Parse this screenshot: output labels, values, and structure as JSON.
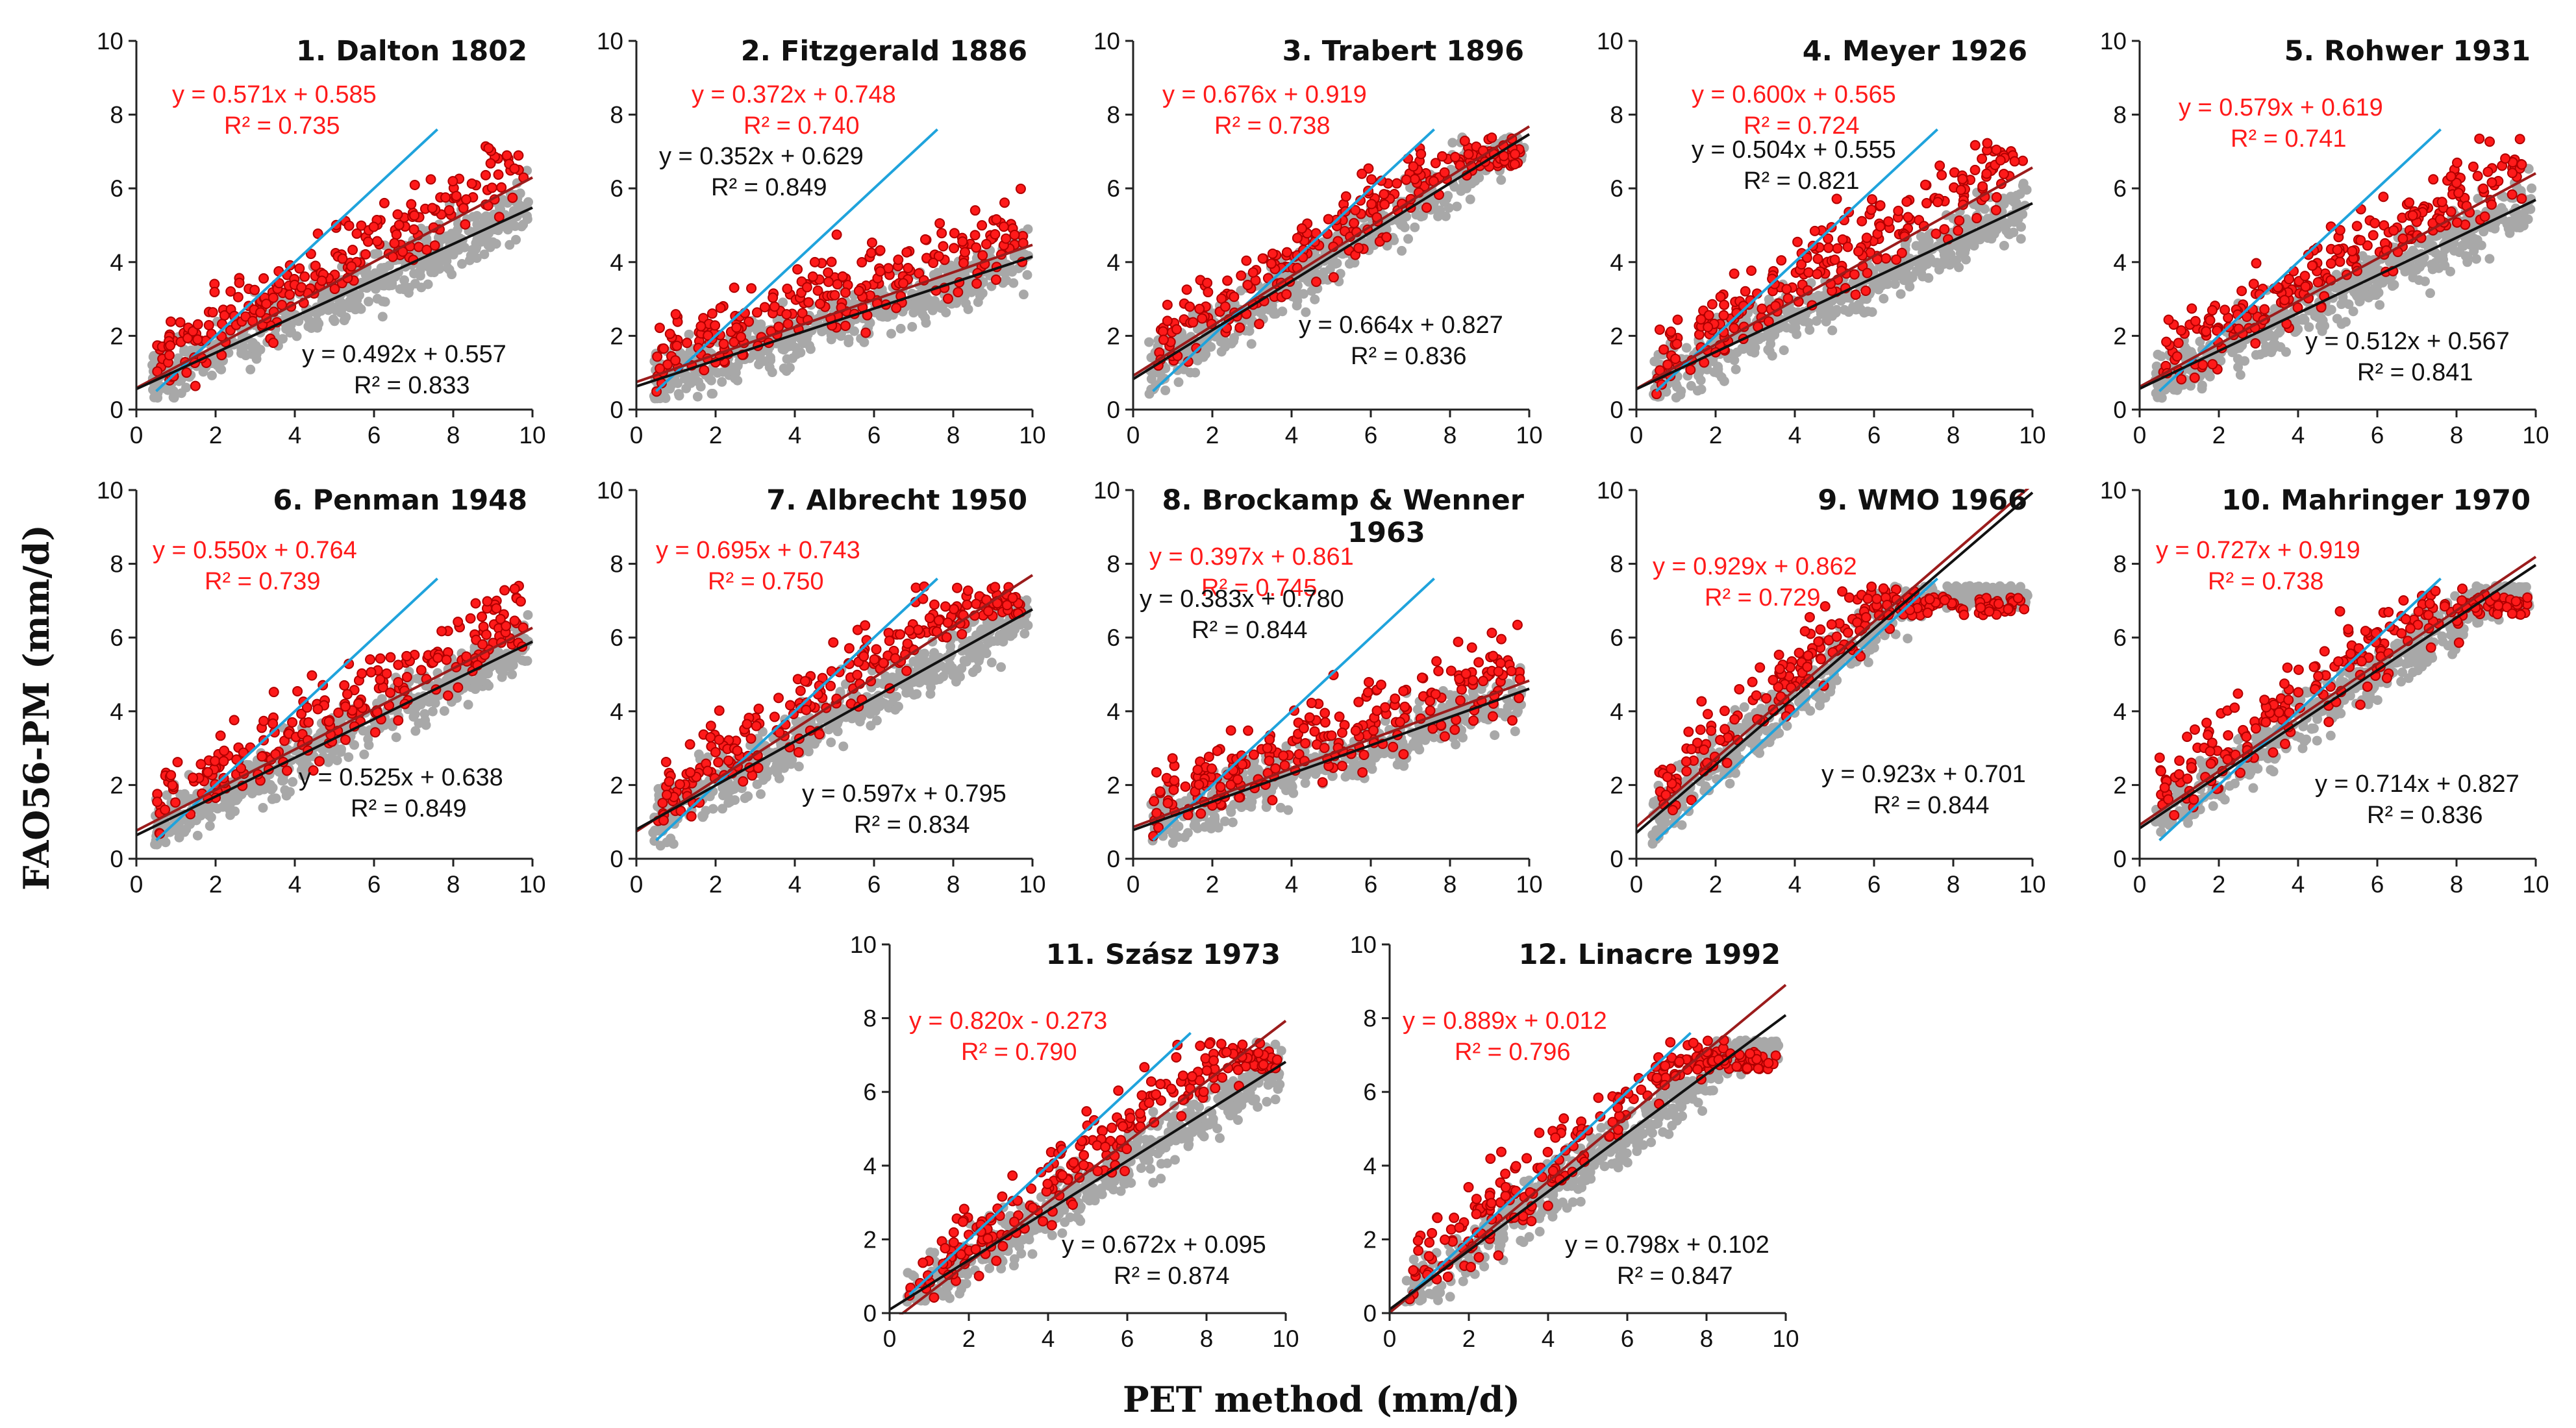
{
  "figure": {
    "ylabel": "FAO56-PM (mm/d)",
    "xlabel": "PET method (mm/d)"
  },
  "colors": {
    "red": "#ff1a1a",
    "red_edge": "#b00000",
    "gray": "#a8a8a8",
    "black": "#111111",
    "blue": "#1fa3dc",
    "red_line": "#9b1c1c"
  },
  "chart_data": [
    {
      "type": "scatter",
      "title": "1. Dalton 1802",
      "title2": "",
      "xlim": [
        0,
        10
      ],
      "ylim": [
        0,
        10
      ],
      "xticks": [
        "0",
        "2",
        "4",
        "6",
        "8",
        "10"
      ],
      "yticks": [
        "0",
        "2",
        "4",
        "6",
        "8",
        "10"
      ],
      "red": {
        "slope": 0.571,
        "intercept": 0.585,
        "eq": "y = 0.571x + 0.585",
        "r2": "R² = 0.735"
      },
      "black": {
        "slope": 0.492,
        "intercept": 0.557,
        "eq": "y = 0.492x + 0.557",
        "r2": "R² = 0.833"
      },
      "blue": {
        "slope": 1.0,
        "intercept": 0.0
      }
    },
    {
      "type": "scatter",
      "title": "2. Fitzgerald 1886",
      "title2": "",
      "xlim": [
        0,
        10
      ],
      "ylim": [
        0,
        10
      ],
      "xticks": [
        "0",
        "2",
        "4",
        "6",
        "8",
        "10"
      ],
      "yticks": [
        "0",
        "2",
        "4",
        "6",
        "8",
        "10"
      ],
      "red": {
        "slope": 0.372,
        "intercept": 0.748,
        "eq": "y = 0.372x + 0.748",
        "r2": "R² = 0.740"
      },
      "black": {
        "slope": 0.352,
        "intercept": 0.629,
        "eq": "y = 0.352x + 0.629",
        "r2": "R² = 0.849"
      },
      "blue": {
        "slope": 1.0,
        "intercept": 0.0
      }
    },
    {
      "type": "scatter",
      "title": "3. Trabert 1896",
      "title2": "",
      "xlim": [
        0,
        10
      ],
      "ylim": [
        0,
        10
      ],
      "xticks": [
        "0",
        "2",
        "4",
        "6",
        "8",
        "10"
      ],
      "yticks": [
        "0",
        "2",
        "4",
        "6",
        "8",
        "10"
      ],
      "red": {
        "slope": 0.676,
        "intercept": 0.919,
        "eq": "y = 0.676x + 0.919",
        "r2": "R² = 0.738"
      },
      "black": {
        "slope": 0.664,
        "intercept": 0.827,
        "eq": "y = 0.664x + 0.827",
        "r2": "R² = 0.836"
      },
      "blue": {
        "slope": 1.0,
        "intercept": 0.0
      }
    },
    {
      "type": "scatter",
      "title": "4. Meyer 1926",
      "title2": "",
      "xlim": [
        0,
        10
      ],
      "ylim": [
        0,
        10
      ],
      "xticks": [
        "0",
        "2",
        "4",
        "6",
        "8",
        "10"
      ],
      "yticks": [
        "0",
        "2",
        "4",
        "6",
        "8",
        "10"
      ],
      "red": {
        "slope": 0.6,
        "intercept": 0.565,
        "eq": "y = 0.600x + 0.565",
        "r2": "R² = 0.724"
      },
      "black": {
        "slope": 0.504,
        "intercept": 0.555,
        "eq": "y = 0.504x + 0.555",
        "r2": "R² = 0.821"
      },
      "blue": {
        "slope": 1.0,
        "intercept": 0.0
      }
    },
    {
      "type": "scatter",
      "title": "5. Rohwer 1931",
      "title2": "",
      "xlim": [
        0,
        10
      ],
      "ylim": [
        0,
        10
      ],
      "xticks": [
        "0",
        "2",
        "4",
        "6",
        "8",
        "10"
      ],
      "yticks": [
        "0",
        "2",
        "4",
        "6",
        "8",
        "10"
      ],
      "red": {
        "slope": 0.579,
        "intercept": 0.619,
        "eq": "y = 0.579x + 0.619",
        "r2": "R² = 0.741"
      },
      "black": {
        "slope": 0.512,
        "intercept": 0.567,
        "eq": "y = 0.512x + 0.567",
        "r2": "R² = 0.841"
      },
      "blue": {
        "slope": 1.0,
        "intercept": 0.0
      }
    },
    {
      "type": "scatter",
      "title": "6. Penman 1948",
      "title2": "",
      "xlim": [
        0,
        10
      ],
      "ylim": [
        0,
        10
      ],
      "xticks": [
        "0",
        "2",
        "4",
        "6",
        "8",
        "10"
      ],
      "yticks": [
        "0",
        "2",
        "4",
        "6",
        "8",
        "10"
      ],
      "red": {
        "slope": 0.55,
        "intercept": 0.764,
        "eq": "y = 0.550x + 0.764",
        "r2": "R² = 0.739"
      },
      "black": {
        "slope": 0.525,
        "intercept": 0.638,
        "eq": "y = 0.525x + 0.638",
        "r2": "R² = 0.849"
      },
      "blue": {
        "slope": 1.0,
        "intercept": 0.0
      }
    },
    {
      "type": "scatter",
      "title": "7. Albrecht 1950",
      "title2": "",
      "xlim": [
        0,
        10
      ],
      "ylim": [
        0,
        10
      ],
      "xticks": [
        "0",
        "2",
        "4",
        "6",
        "8",
        "10"
      ],
      "yticks": [
        "0",
        "2",
        "4",
        "6",
        "8",
        "10"
      ],
      "red": {
        "slope": 0.695,
        "intercept": 0.743,
        "eq": "y = 0.695x + 0.743",
        "r2": "R² = 0.750"
      },
      "black": {
        "slope": 0.597,
        "intercept": 0.795,
        "eq": "y = 0.597x + 0.795",
        "r2": "R² = 0.834"
      },
      "blue": {
        "slope": 1.0,
        "intercept": 0.0
      }
    },
    {
      "type": "scatter",
      "title": "8. Brockamp & Wenner",
      "title2": "1963",
      "xlim": [
        0,
        10
      ],
      "ylim": [
        0,
        10
      ],
      "xticks": [
        "0",
        "2",
        "4",
        "6",
        "8",
        "10"
      ],
      "yticks": [
        "0",
        "2",
        "4",
        "6",
        "8",
        "10"
      ],
      "red": {
        "slope": 0.397,
        "intercept": 0.861,
        "eq": "y = 0.397x + 0.861",
        "r2": "R² = 0.745"
      },
      "black": {
        "slope": 0.383,
        "intercept": 0.78,
        "eq": "y = 0.383x + 0.780",
        "r2": "R² = 0.844"
      },
      "blue": {
        "slope": 1.0,
        "intercept": 0.0
      }
    },
    {
      "type": "scatter",
      "title": "9. WMO 1966",
      "title2": "",
      "xlim": [
        0,
        10
      ],
      "ylim": [
        0,
        10
      ],
      "xticks": [
        "0",
        "2",
        "4",
        "6",
        "8",
        "10"
      ],
      "yticks": [
        "0",
        "2",
        "4",
        "6",
        "8",
        "10"
      ],
      "red": {
        "slope": 0.929,
        "intercept": 0.862,
        "eq": "y = 0.929x + 0.862",
        "r2": "R² = 0.729"
      },
      "black": {
        "slope": 0.923,
        "intercept": 0.701,
        "eq": "y = 0.923x + 0.701",
        "r2": "R² = 0.844"
      },
      "blue": {
        "slope": 1.0,
        "intercept": 0.0
      }
    },
    {
      "type": "scatter",
      "title": "10. Mahringer 1970",
      "title2": "",
      "xlim": [
        0,
        10
      ],
      "ylim": [
        0,
        10
      ],
      "xticks": [
        "0",
        "2",
        "4",
        "6",
        "8",
        "10"
      ],
      "yticks": [
        "0",
        "2",
        "4",
        "6",
        "8",
        "10"
      ],
      "red": {
        "slope": 0.727,
        "intercept": 0.919,
        "eq": "y = 0.727x + 0.919",
        "r2": "R² = 0.738"
      },
      "black": {
        "slope": 0.714,
        "intercept": 0.827,
        "eq": "y = 0.714x + 0.827",
        "r2": "R² = 0.836"
      },
      "blue": {
        "slope": 1.0,
        "intercept": 0.0
      }
    },
    {
      "type": "scatter",
      "title": "11. Szász 1973",
      "title2": "",
      "xlim": [
        0,
        10
      ],
      "ylim": [
        0,
        10
      ],
      "xticks": [
        "0",
        "2",
        "4",
        "6",
        "8",
        "10"
      ],
      "yticks": [
        "0",
        "2",
        "4",
        "6",
        "8",
        "10"
      ],
      "red": {
        "slope": 0.82,
        "intercept": -0.273,
        "eq": "y = 0.820x - 0.273",
        "r2": "R² = 0.790"
      },
      "black": {
        "slope": 0.672,
        "intercept": 0.095,
        "eq": "y = 0.672x + 0.095",
        "r2": "R² = 0.874"
      },
      "blue": {
        "slope": 1.0,
        "intercept": 0.0
      }
    },
    {
      "type": "scatter",
      "title": "12. Linacre 1992",
      "title2": "",
      "xlim": [
        0,
        10
      ],
      "ylim": [
        0,
        10
      ],
      "xticks": [
        "0",
        "2",
        "4",
        "6",
        "8",
        "10"
      ],
      "yticks": [
        "0",
        "2",
        "4",
        "6",
        "8",
        "10"
      ],
      "red": {
        "slope": 0.889,
        "intercept": 0.012,
        "eq": "y = 0.889x + 0.012",
        "r2": "R² = 0.796"
      },
      "black": {
        "slope": 0.798,
        "intercept": 0.102,
        "eq": "y = 0.798x + 0.102",
        "r2": "R² = 0.847"
      },
      "blue": {
        "slope": 1.0,
        "intercept": 0.0
      }
    }
  ]
}
